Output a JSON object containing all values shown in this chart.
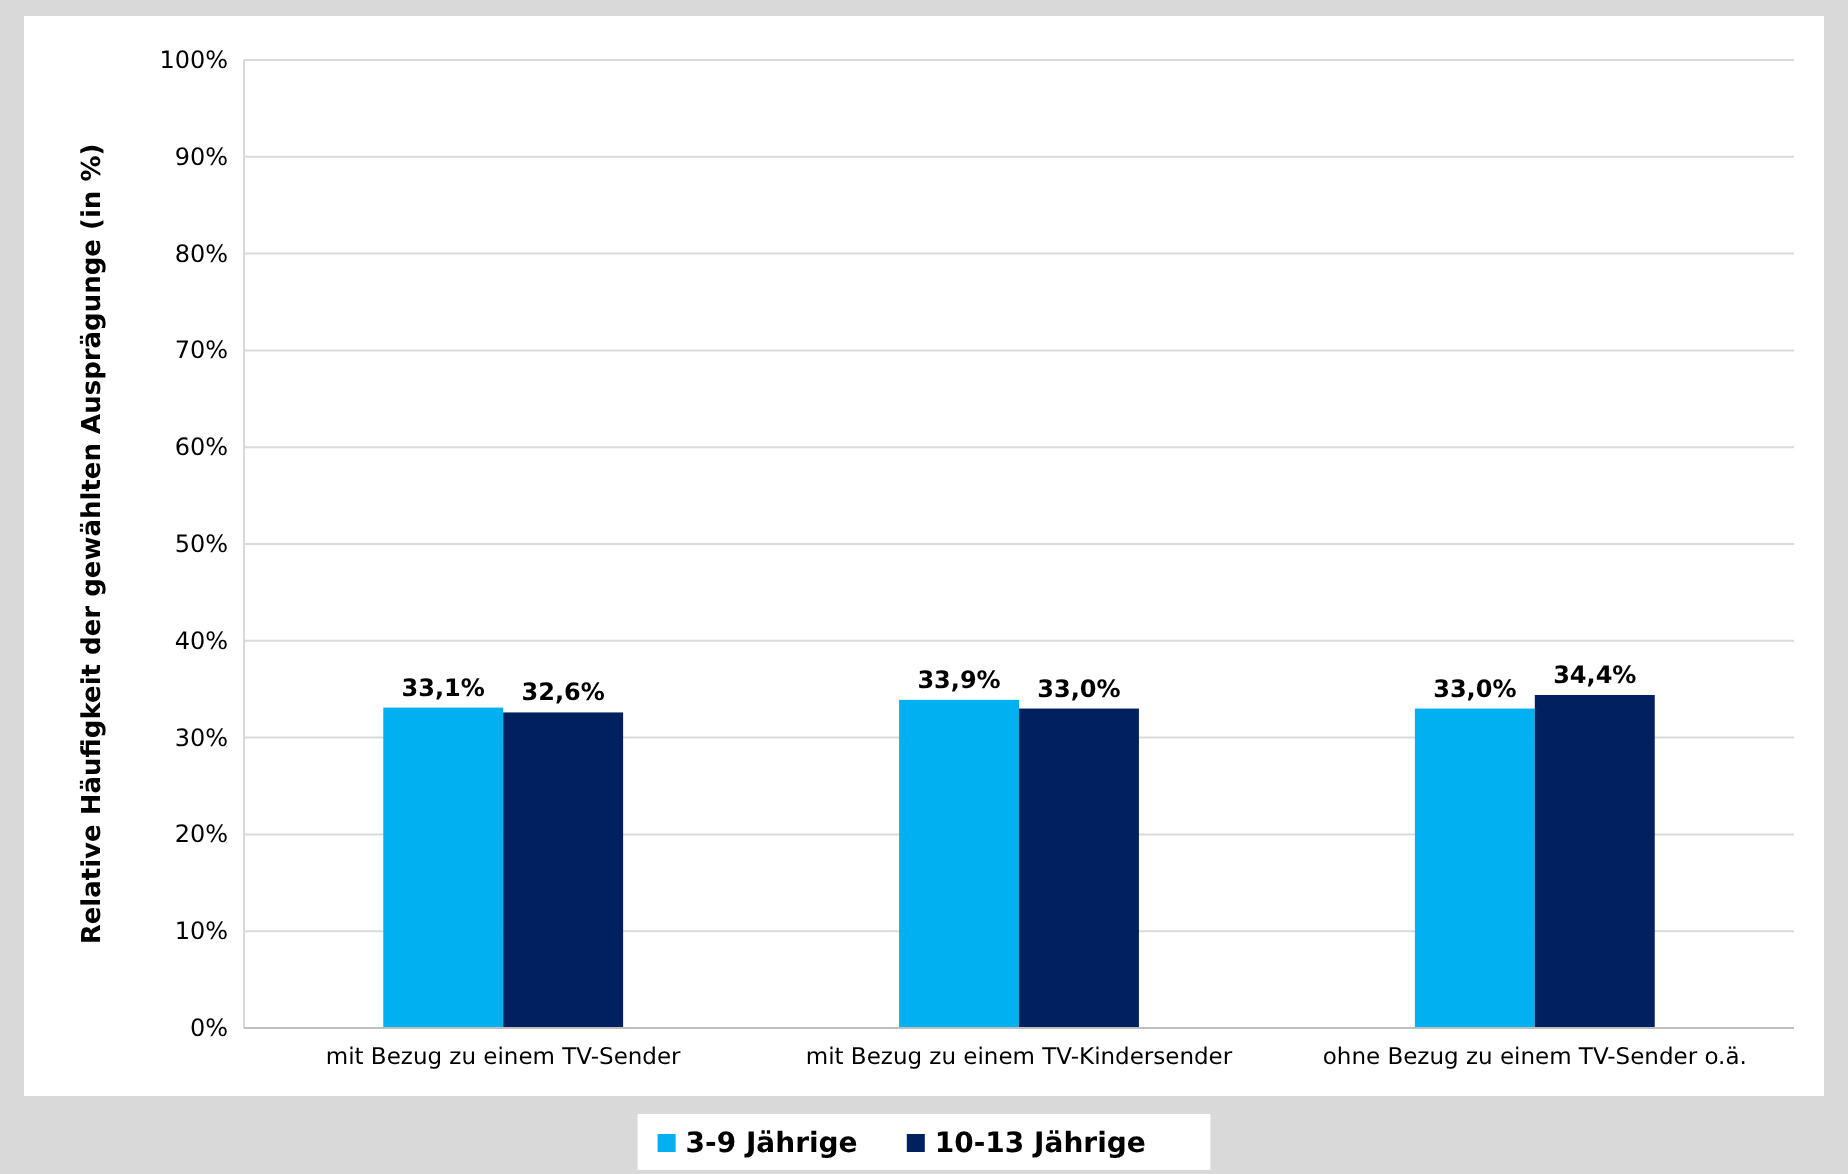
{
  "chart_data": {
    "type": "bar",
    "ylabel": "Relative Häufigkeit der gewählten Ausprägunge (in %)",
    "categories": [
      "mit Bezug zu einem TV-Sender",
      "mit Bezug zu einem TV-Kindersender",
      "ohne Bezug zu einem TV-Sender o.ä."
    ],
    "series": [
      {
        "name": "3-9 Jährige",
        "color": "#00b0f0",
        "values": [
          33.1,
          33.9,
          33.0
        ],
        "value_labels": [
          "33,1%",
          "33,9%",
          "33,0%"
        ]
      },
      {
        "name": "10-13 Jährige",
        "color": "#002060",
        "values": [
          32.6,
          33.0,
          34.4
        ],
        "value_labels": [
          "32,6%",
          "33,0%",
          "34,4%"
        ]
      }
    ],
    "ylim": [
      0,
      100
    ],
    "yticks": [
      {
        "value": 0,
        "label": "0%"
      },
      {
        "value": 10,
        "label": "10%"
      },
      {
        "value": 20,
        "label": "20%"
      },
      {
        "value": 30,
        "label": "30%"
      },
      {
        "value": 40,
        "label": "40%"
      },
      {
        "value": 50,
        "label": "50%"
      },
      {
        "value": 60,
        "label": "60%"
      },
      {
        "value": 70,
        "label": "70%"
      },
      {
        "value": 80,
        "label": "80%"
      },
      {
        "value": 90,
        "label": "90%"
      },
      {
        "value": 100,
        "label": "100%"
      }
    ],
    "grid": "y",
    "legend": "bottom"
  }
}
